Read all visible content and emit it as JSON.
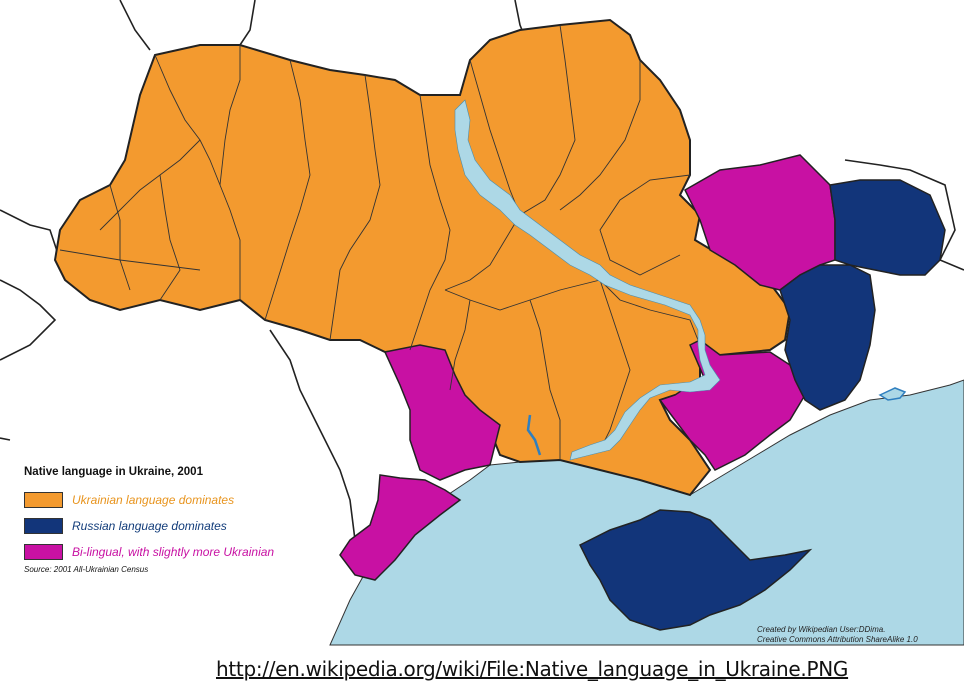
{
  "legend": {
    "title": "Native language in Ukraine, 2001",
    "items": [
      {
        "label": "Ukrainian language dominates",
        "color": "#F39A2F",
        "text_color": "#E8941E"
      },
      {
        "label": "Russian language dominates",
        "color": "#12357A",
        "text_color": "#123C7A"
      },
      {
        "label": "Bi-lingual, with slightly more Ukrainian",
        "color": "#C811A3",
        "text_color": "#C811A3"
      }
    ],
    "source": "Source: 2001 All-Ukrainian Census"
  },
  "credit": {
    "line1": "Created by Wikipedian User:DDima.",
    "line2": "Creative Commons Attribution ShareAlike 1.0"
  },
  "url": "http://en.wikipedia.org/wiki/File:Native_language_in_Ukraine.PNG",
  "colors": {
    "sea": "#ADD8E6",
    "river": "#ADD8E6",
    "ukrainian": "#F39A2F",
    "russian": "#12357A",
    "bilingual": "#C811A3"
  }
}
